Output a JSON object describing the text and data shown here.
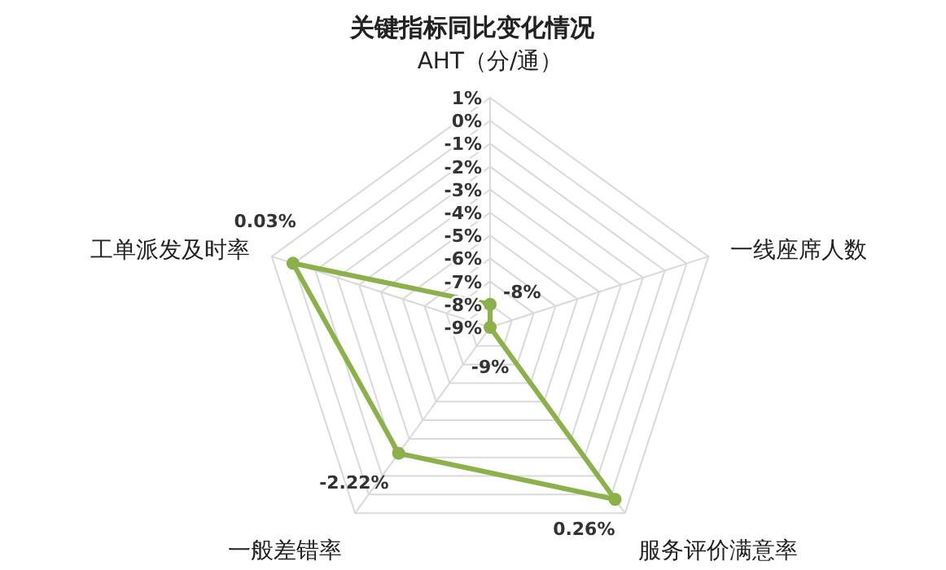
{
  "chart_data": {
    "type": "radar",
    "title": "关键指标同比变化情况",
    "categories": [
      "AHT（分/通）",
      "一线座席人数",
      "服务评价满意率",
      "一般差错率",
      "工单派发及时率"
    ],
    "series": [
      {
        "color": "#8cb04a",
        "values": [
          -8,
          -9,
          0.26,
          -2.22,
          0.03
        ],
        "value_labels": [
          "-8%",
          "-9%",
          "0.26%",
          "-2.22%",
          "0.03%"
        ]
      }
    ],
    "ylim": [
      -9,
      1
    ],
    "yticks": [
      {
        "value": -9,
        "label": "-9%"
      },
      {
        "value": -8,
        "label": "-8%"
      },
      {
        "value": -7,
        "label": "-7%"
      },
      {
        "value": -6,
        "label": "-6%"
      },
      {
        "value": -5,
        "label": "-5%"
      },
      {
        "value": -4,
        "label": "-4%"
      },
      {
        "value": -3,
        "label": "-3%"
      },
      {
        "value": -2,
        "label": "-2%"
      },
      {
        "value": -1,
        "label": "-1%"
      },
      {
        "value": 0,
        "label": "0%"
      },
      {
        "value": 1,
        "label": "1%"
      }
    ],
    "grid": true,
    "marker": "circle",
    "line_style": "solid"
  }
}
